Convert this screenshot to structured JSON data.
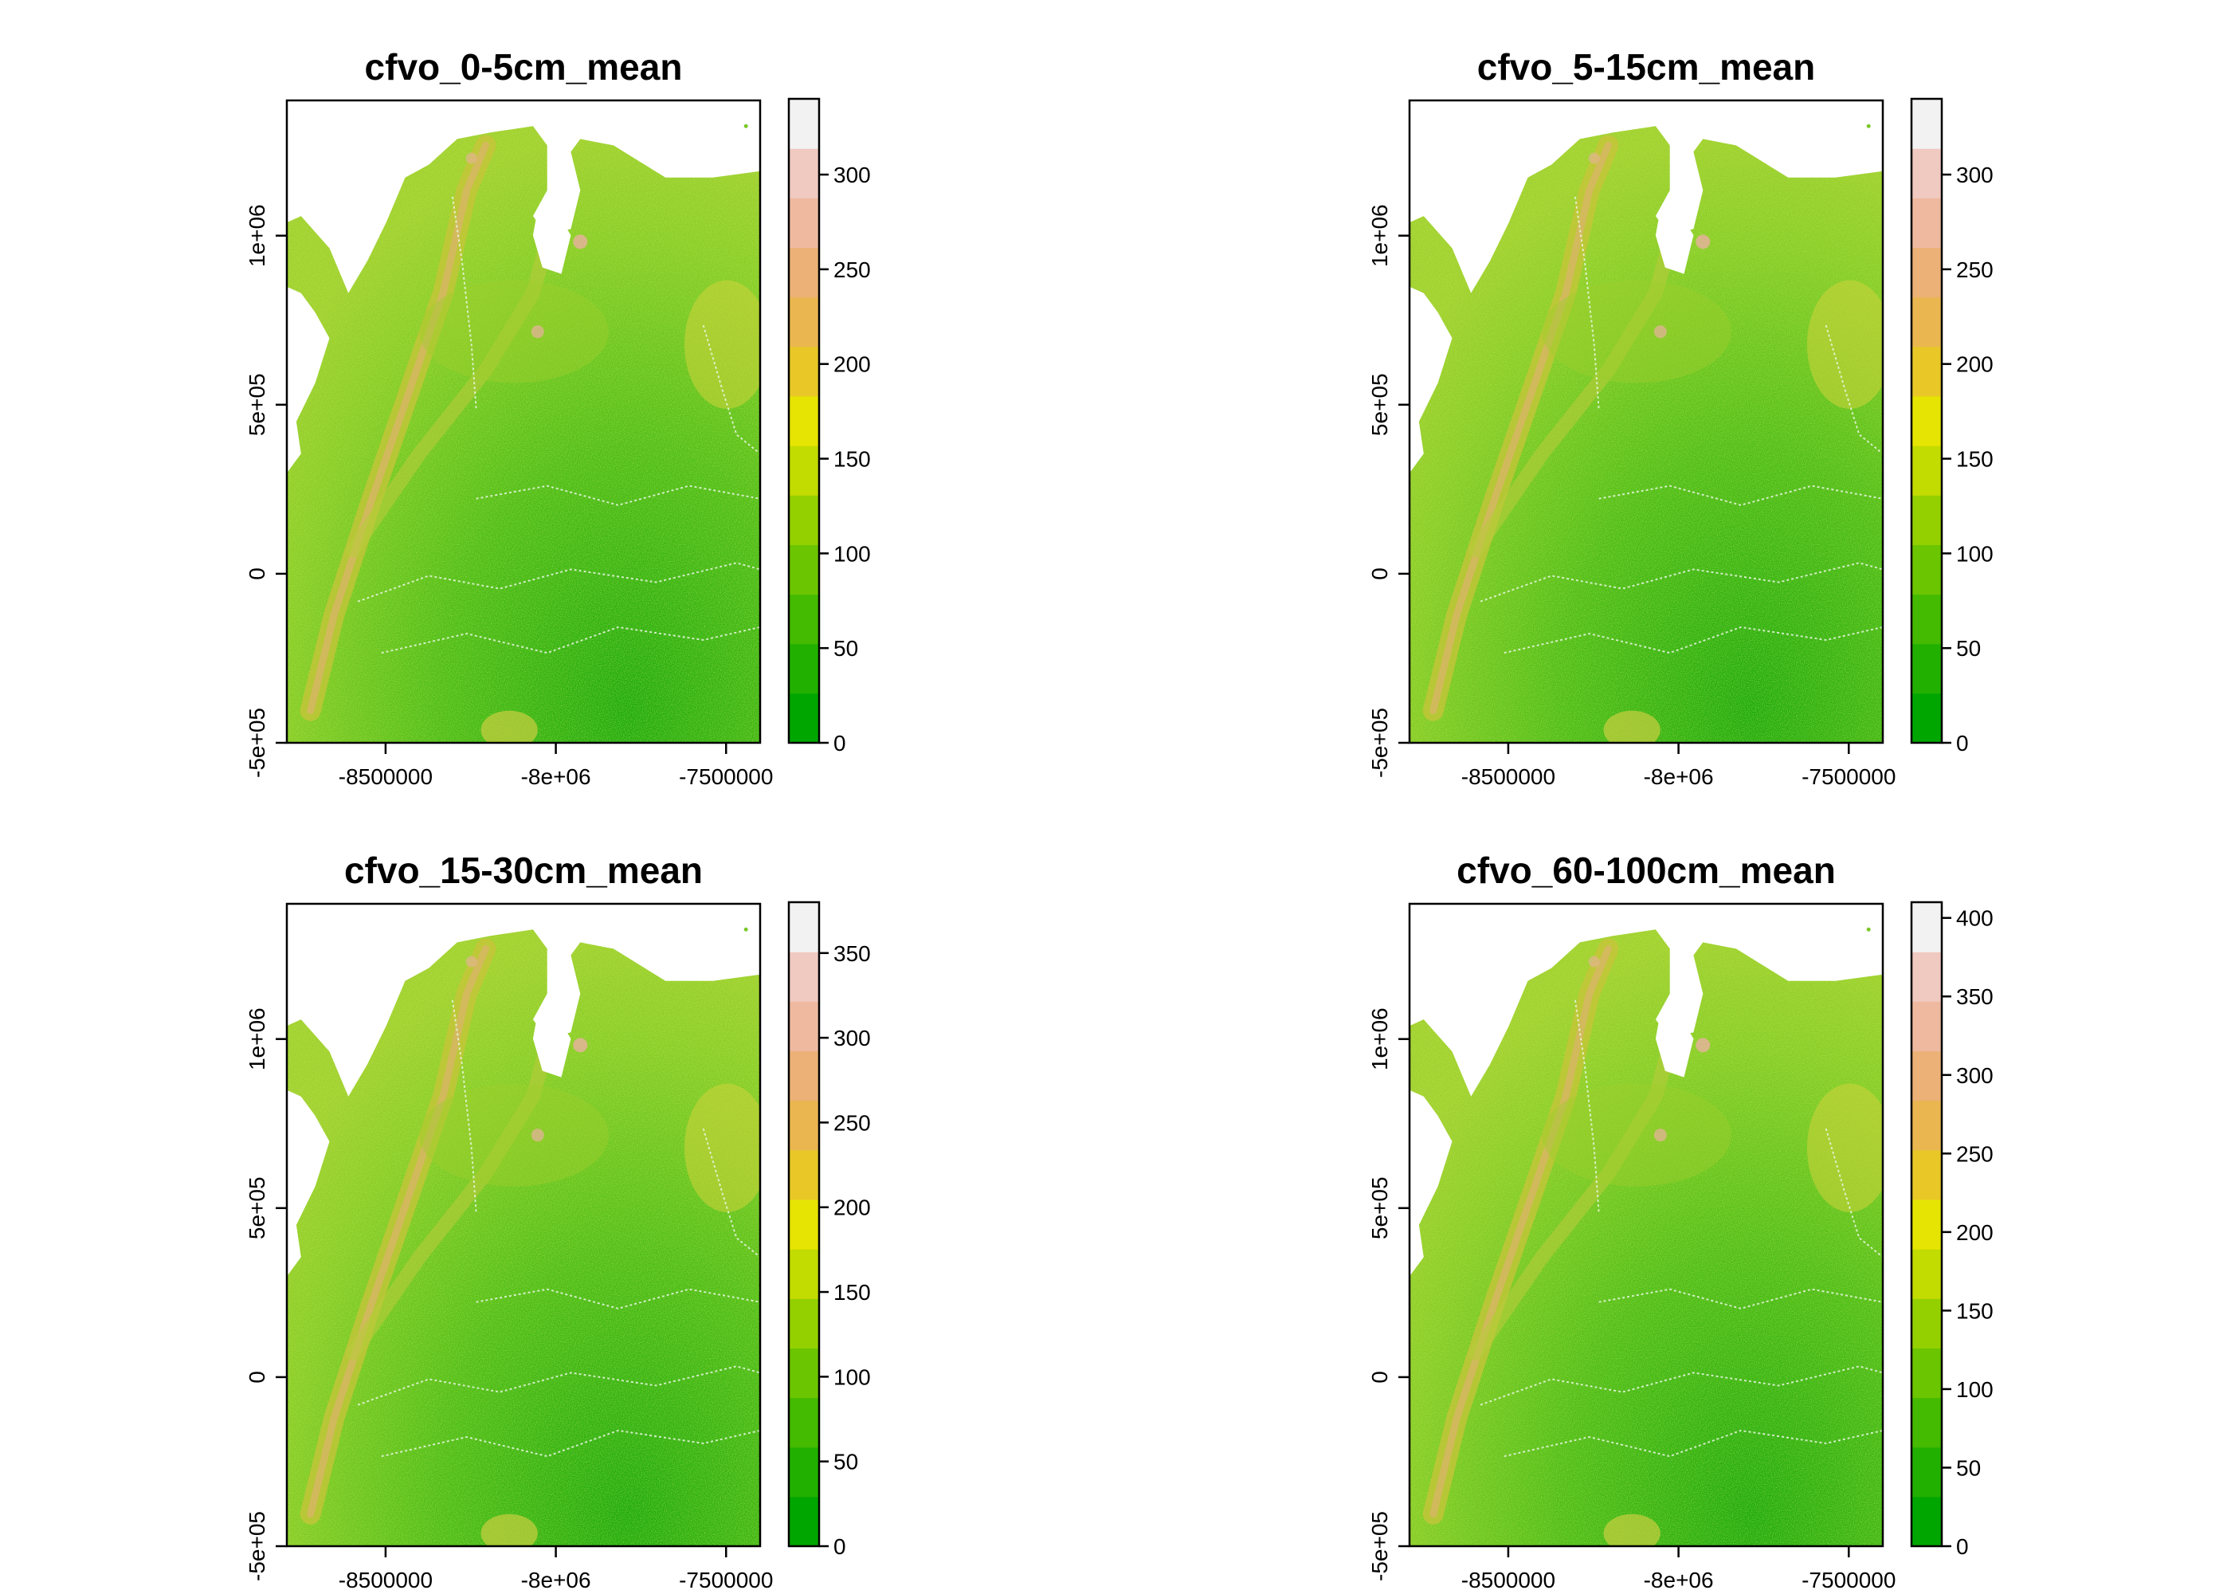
{
  "figure": {
    "type": "raster-map-grid",
    "layout": "2x2"
  },
  "colors": {
    "scale": [
      "#00a600",
      "#22b000",
      "#44ba00",
      "#6bc500",
      "#94d000",
      "#c2db00",
      "#e6e402",
      "#e8c727",
      "#eab64f",
      "#ecb176",
      "#eeb99f",
      "#f0c9c0",
      "#f2f2f2"
    ],
    "water": "#ffffff",
    "frame": "#000000"
  },
  "chart_data": [
    {
      "type": "heatmap",
      "title": "cfvo_0-5cm_mean",
      "x_ticks": [
        "-8500000",
        "-8e+06",
        "-7500000"
      ],
      "x_tick_values": [
        -8500000,
        -8000000,
        -7500000
      ],
      "y_ticks": [
        "-5e+05",
        "0",
        "5e+05",
        "1e+06"
      ],
      "y_tick_values": [
        -500000,
        0,
        500000,
        1000000
      ],
      "xlim": [
        -8790000,
        -7400000
      ],
      "ylim": [
        -500000,
        1400000
      ],
      "legend_ticks": [
        "0",
        "50",
        "100",
        "150",
        "200",
        "250",
        "300"
      ],
      "legend_tick_values": [
        0,
        50,
        100,
        150,
        200,
        250,
        300
      ],
      "legend_range": [
        0,
        340
      ]
    },
    {
      "type": "heatmap",
      "title": "cfvo_5-15cm_mean",
      "x_ticks": [
        "-8500000",
        "-8e+06",
        "-7500000"
      ],
      "x_tick_values": [
        -8500000,
        -8000000,
        -7500000
      ],
      "y_ticks": [
        "-5e+05",
        "0",
        "5e+05",
        "1e+06"
      ],
      "y_tick_values": [
        -500000,
        0,
        500000,
        1000000
      ],
      "xlim": [
        -8790000,
        -7400000
      ],
      "ylim": [
        -500000,
        1400000
      ],
      "legend_ticks": [
        "0",
        "50",
        "100",
        "150",
        "200",
        "250",
        "300"
      ],
      "legend_tick_values": [
        0,
        50,
        100,
        150,
        200,
        250,
        300
      ],
      "legend_range": [
        0,
        340
      ]
    },
    {
      "type": "heatmap",
      "title": "cfvo_15-30cm_mean",
      "x_ticks": [
        "-8500000",
        "-8e+06",
        "-7500000"
      ],
      "x_tick_values": [
        -8500000,
        -8000000,
        -7500000
      ],
      "y_ticks": [
        "-5e+05",
        "0",
        "5e+05",
        "1e+06"
      ],
      "y_tick_values": [
        -500000,
        0,
        500000,
        1000000
      ],
      "xlim": [
        -8790000,
        -7400000
      ],
      "ylim": [
        -500000,
        1400000
      ],
      "legend_ticks": [
        "0",
        "50",
        "100",
        "150",
        "200",
        "250",
        "300",
        "350"
      ],
      "legend_tick_values": [
        0,
        50,
        100,
        150,
        200,
        250,
        300,
        350
      ],
      "legend_range": [
        0,
        380
      ]
    },
    {
      "type": "heatmap",
      "title": "cfvo_60-100cm_mean",
      "x_ticks": [
        "-8500000",
        "-8e+06",
        "-7500000"
      ],
      "x_tick_values": [
        -8500000,
        -8000000,
        -7500000
      ],
      "y_ticks": [
        "-5e+05",
        "0",
        "5e+05",
        "1e+06"
      ],
      "y_tick_values": [
        -500000,
        0,
        500000,
        1000000
      ],
      "xlim": [
        -8790000,
        -7400000
      ],
      "ylim": [
        -500000,
        1400000
      ],
      "legend_ticks": [
        "0",
        "50",
        "100",
        "150",
        "200",
        "250",
        "300",
        "350",
        "400"
      ],
      "legend_tick_values": [
        0,
        50,
        100,
        150,
        200,
        250,
        300,
        350,
        400
      ],
      "legend_range": [
        0,
        410
      ]
    }
  ]
}
